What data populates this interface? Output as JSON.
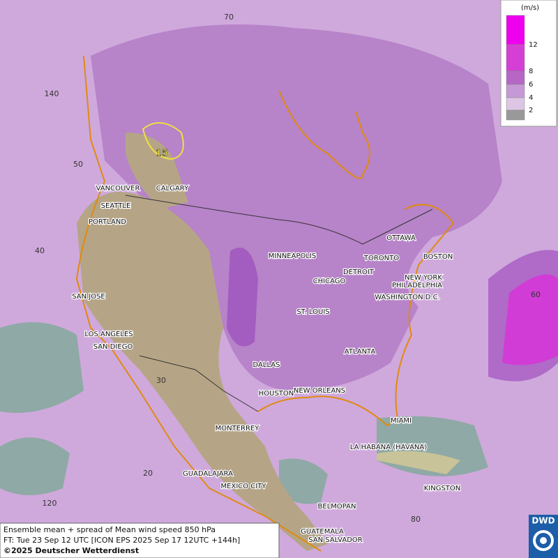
{
  "map": {
    "grid_labels": [
      "70",
      "140",
      "50",
      "40",
      "30",
      "20",
      "120",
      "60",
      "80"
    ],
    "cities": [
      "VANCOUVER",
      "CALGARY",
      "SEATTLE",
      "PORTLAND",
      "SAN JOSE",
      "LOS ANGELES",
      "SAN DIEGO",
      "MINNEAPOLIS",
      "CHICAGO",
      "DETROIT",
      "TORONTO",
      "OTTAWA",
      "BOSTON",
      "NEW YORK",
      "PHILADELPHIA",
      "WASHINGTON D.C.",
      "ST. LOUIS",
      "ATLANTA",
      "DALLAS",
      "HOUSTON",
      "NEW ORLEANS",
      "MIAMI",
      "MONTERREY",
      "LA HABANA (HAVANA)",
      "GUADALAJARA",
      "MEXICO CITY",
      "KINGSTON",
      "BELMOPAN",
      "GUATEMALA",
      "SAN SALVADOR"
    ],
    "contour_label": "15"
  },
  "legend": {
    "unit": "(m/s)",
    "levels": [
      "12",
      "8",
      "6",
      "4",
      "2"
    ]
  },
  "footer": {
    "title": "Ensemble mean + spread of Mean wind speed 850 hPa",
    "forecast": "FT: Tue 23 Sep 12 UTC [ICON EPS 2025 Sep 17 12UTC +144h]",
    "copyright": "©2025 Deutscher Wetterdienst"
  },
  "logo": "DWD"
}
